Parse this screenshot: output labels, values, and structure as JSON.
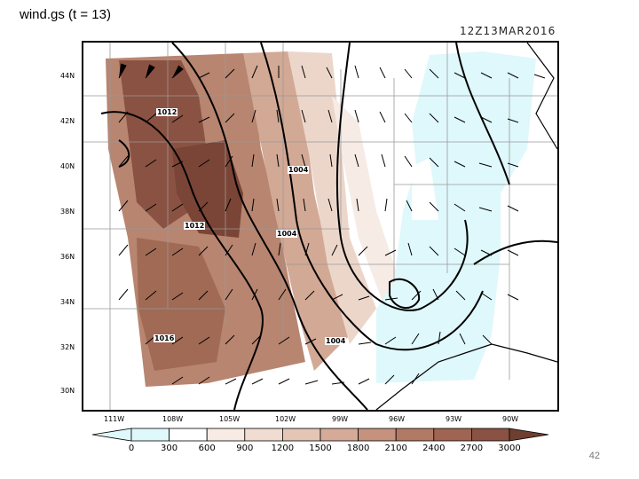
{
  "title": "wind.gs (t = 13)",
  "timestamp": "12Z13MAR2016",
  "page_number": "42",
  "map": {
    "lat_labels": [
      "44N",
      "42N",
      "40N",
      "38N",
      "36N",
      "34N",
      "32N",
      "30N"
    ],
    "lon_labels": [
      "111W",
      "108W",
      "105W",
      "102W",
      "99W",
      "96W",
      "93W",
      "90W"
    ],
    "isobar_labels": [
      "1012",
      "1004",
      "1012",
      "1004",
      "1016",
      "1004"
    ]
  },
  "colorbar": {
    "labels": [
      "0",
      "300",
      "600",
      "900",
      "1200",
      "1500",
      "1800",
      "2100",
      "2400",
      "2700",
      "3000"
    ],
    "colors": [
      "#dff8fb",
      "#ffffff",
      "#f7ebe4",
      "#f0dcd0",
      "#e4c5b6",
      "#d5ab98",
      "#c4927d",
      "#b27a65",
      "#9f6552",
      "#8a5242"
    ]
  }
}
